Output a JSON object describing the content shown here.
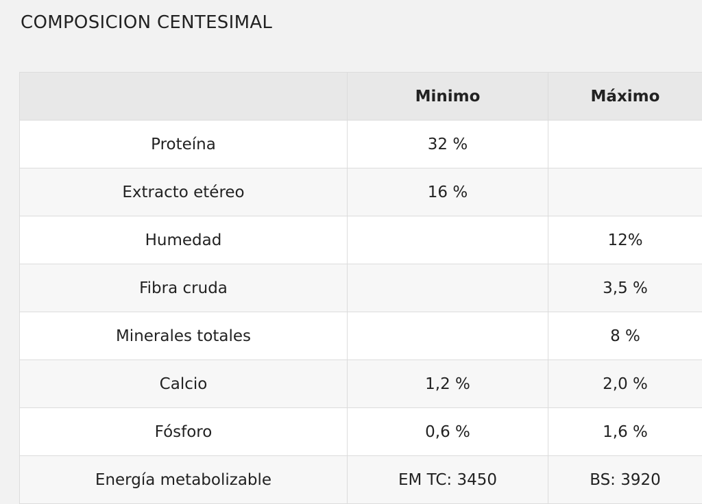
{
  "title": "COMPOSICION CENTESIMAL",
  "table": {
    "columns": [
      "Minimo",
      "Máximo"
    ],
    "rows": [
      {
        "label": "Proteína",
        "min": "32 %"
      },
      {
        "label": "Extracto etéreo",
        "min": "16 %"
      },
      {
        "label": "Humedad",
        "max": "12%"
      },
      {
        "label": "Fibra cruda",
        "max": "3,5 %"
      },
      {
        "label": "Minerales totales",
        "max": "8 %"
      },
      {
        "label": "Calcio",
        "min": "1,2 %",
        "max": "2,0 %"
      },
      {
        "label": "Fósforo",
        "min": "0,6 %",
        "max": "1,6 %"
      },
      {
        "label": "Energía metabolizable",
        "min": "EM TC: 3450",
        "max": "BS: 3920"
      }
    ]
  }
}
